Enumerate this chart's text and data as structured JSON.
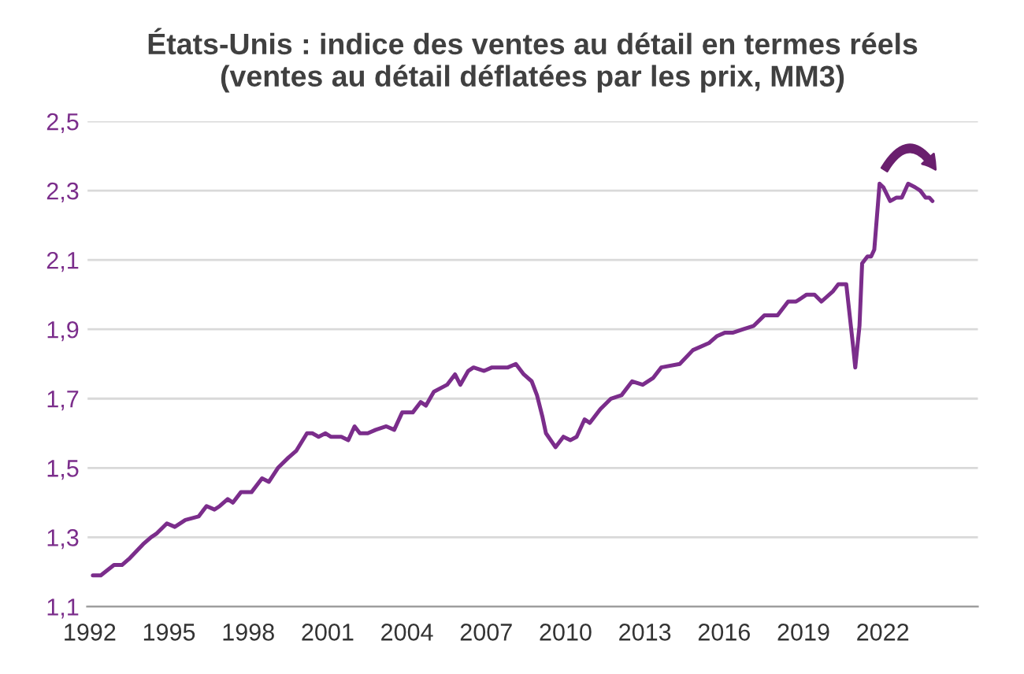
{
  "chart_data": {
    "type": "line",
    "title": "États-Unis : indice des ventes au détail en termes réels\n(ventes au détail déflatées par les prix, MM3)",
    "x": [
      1992.12,
      1992.42,
      1992.92,
      1993.22,
      1993.52,
      1994.02,
      1994.32,
      1994.52,
      1994.92,
      1995.22,
      1995.62,
      1996.12,
      1996.42,
      1996.72,
      1996.92,
      1997.22,
      1997.42,
      1997.72,
      1998.12,
      1998.52,
      1998.78,
      1999.12,
      1999.52,
      1999.82,
      2000.22,
      2000.42,
      2000.66,
      2000.92,
      2001.12,
      2001.52,
      2001.78,
      2002.02,
      2002.22,
      2002.52,
      2002.82,
      2003.22,
      2003.52,
      2003.82,
      2004.22,
      2004.52,
      2004.72,
      2005.02,
      2005.52,
      2005.82,
      2006.02,
      2006.32,
      2006.52,
      2006.92,
      2007.22,
      2007.82,
      2008.12,
      2008.42,
      2008.72,
      2008.92,
      2009.12,
      2009.26,
      2009.62,
      2009.92,
      2010.18,
      2010.42,
      2010.72,
      2010.92,
      2011.32,
      2011.72,
      2012.12,
      2012.52,
      2012.92,
      2013.32,
      2013.62,
      2014.32,
      2014.82,
      2015.42,
      2015.72,
      2016.02,
      2016.32,
      2016.72,
      2017.12,
      2017.52,
      2018.02,
      2018.42,
      2018.72,
      2019.12,
      2019.42,
      2019.68,
      2020.12,
      2020.32,
      2020.62,
      2020.88,
      2020.96,
      2021.12,
      2021.22,
      2021.42,
      2021.56,
      2021.68,
      2021.88,
      2022.02,
      2022.28,
      2022.52,
      2022.72,
      2022.96,
      2023.22,
      2023.42,
      2023.62,
      2023.76,
      2023.88
    ],
    "series": [
      {
        "color": "#7b2d8b",
        "values": [
          1.19,
          1.19,
          1.22,
          1.22,
          1.24,
          1.28,
          1.3,
          1.31,
          1.34,
          1.33,
          1.35,
          1.36,
          1.39,
          1.38,
          1.39,
          1.41,
          1.4,
          1.43,
          1.43,
          1.47,
          1.46,
          1.5,
          1.53,
          1.55,
          1.6,
          1.6,
          1.59,
          1.6,
          1.59,
          1.59,
          1.58,
          1.62,
          1.6,
          1.6,
          1.61,
          1.62,
          1.61,
          1.66,
          1.66,
          1.69,
          1.68,
          1.72,
          1.74,
          1.77,
          1.74,
          1.78,
          1.79,
          1.78,
          1.79,
          1.79,
          1.8,
          1.77,
          1.75,
          1.71,
          1.65,
          1.6,
          1.56,
          1.59,
          1.58,
          1.59,
          1.64,
          1.63,
          1.67,
          1.7,
          1.71,
          1.75,
          1.74,
          1.76,
          1.79,
          1.8,
          1.84,
          1.86,
          1.88,
          1.89,
          1.89,
          1.9,
          1.91,
          1.94,
          1.94,
          1.98,
          1.98,
          2.0,
          2.0,
          1.98,
          2.01,
          2.03,
          2.03,
          1.85,
          1.79,
          1.91,
          2.09,
          2.11,
          2.11,
          2.13,
          2.32,
          2.31,
          2.27,
          2.28,
          2.28,
          2.32,
          2.31,
          2.3,
          2.28,
          2.28,
          2.27
        ]
      }
    ],
    "xlim": [
      1991.9,
      2025.6
    ],
    "ylim": [
      1.1,
      2.5
    ],
    "xticks": [
      1992,
      1995,
      1998,
      2001,
      2004,
      2007,
      2010,
      2013,
      2016,
      2019,
      2022
    ],
    "yticks": [
      {
        "value": 1.1,
        "label": "1,1"
      },
      {
        "value": 1.3,
        "label": "1,3"
      },
      {
        "value": 1.5,
        "label": "1,5"
      },
      {
        "value": 1.7,
        "label": "1,7"
      },
      {
        "value": 1.9,
        "label": "1,9"
      },
      {
        "value": 2.1,
        "label": "2,1"
      },
      {
        "value": 2.3,
        "label": "2,3"
      },
      {
        "value": 2.5,
        "label": "2,5"
      }
    ],
    "grid": "y",
    "legend": false,
    "marker": "none",
    "line_style": "solid"
  }
}
